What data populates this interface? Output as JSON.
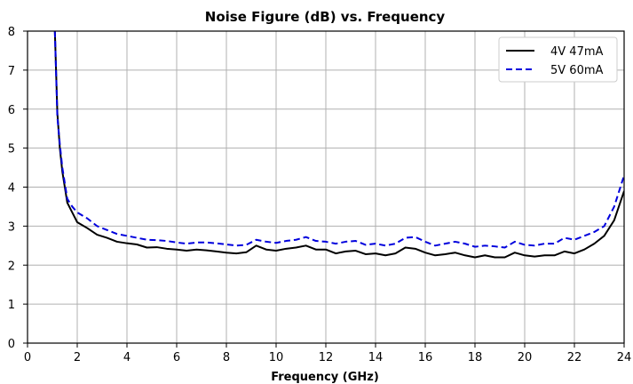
{
  "chart_data": {
    "type": "line",
    "title": "Noise Figure (dB) vs. Frequency",
    "xlabel": "Frequency (GHz)",
    "ylabel": "",
    "xlim": [
      0,
      24
    ],
    "ylim": [
      0,
      8
    ],
    "x_ticks": [
      "0",
      "2",
      "4",
      "6",
      "8",
      "10",
      "12",
      "14",
      "16",
      "18",
      "20",
      "22",
      "24"
    ],
    "y_ticks": [
      "0",
      "1",
      "2",
      "3",
      "4",
      "5",
      "6",
      "7",
      "8"
    ],
    "grid": true,
    "legend_position": "top-right",
    "series": [
      {
        "name": "4V 47mA",
        "color": "#000000",
        "dash": "solid",
        "x": [
          1.1,
          1.2,
          1.3,
          1.4,
          1.5,
          1.6,
          1.8,
          2.0,
          2.4,
          2.8,
          3.2,
          3.6,
          4.0,
          4.4,
          4.8,
          5.2,
          5.6,
          6.0,
          6.4,
          6.8,
          7.2,
          7.6,
          8.0,
          8.4,
          8.8,
          9.2,
          9.6,
          10.0,
          10.4,
          10.8,
          11.2,
          11.6,
          12.0,
          12.4,
          12.8,
          13.2,
          13.6,
          14.0,
          14.4,
          14.8,
          15.2,
          15.6,
          16.0,
          16.4,
          16.8,
          17.2,
          17.6,
          18.0,
          18.4,
          18.8,
          19.2,
          19.6,
          20.0,
          20.4,
          20.8,
          21.2,
          21.6,
          22.0,
          22.4,
          22.8,
          23.2,
          23.6,
          24.0
        ],
        "y": [
          8.0,
          5.9,
          5.0,
          4.4,
          4.0,
          3.6,
          3.35,
          3.1,
          2.95,
          2.78,
          2.7,
          2.6,
          2.56,
          2.53,
          2.45,
          2.46,
          2.42,
          2.4,
          2.37,
          2.4,
          2.38,
          2.35,
          2.32,
          2.3,
          2.33,
          2.5,
          2.4,
          2.37,
          2.42,
          2.45,
          2.5,
          2.4,
          2.4,
          2.3,
          2.35,
          2.37,
          2.28,
          2.3,
          2.25,
          2.3,
          2.45,
          2.42,
          2.32,
          2.25,
          2.28,
          2.32,
          2.25,
          2.2,
          2.25,
          2.2,
          2.2,
          2.32,
          2.25,
          2.22,
          2.25,
          2.25,
          2.35,
          2.3,
          2.4,
          2.55,
          2.75,
          3.15,
          3.9
        ]
      },
      {
        "name": "5V 60mA",
        "color": "#0000dd",
        "dash": "dashed",
        "x": [
          1.1,
          1.2,
          1.3,
          1.4,
          1.5,
          1.6,
          1.8,
          2.0,
          2.4,
          2.8,
          3.2,
          3.6,
          4.0,
          4.4,
          4.8,
          5.2,
          5.6,
          6.0,
          6.4,
          6.8,
          7.2,
          7.6,
          8.0,
          8.4,
          8.8,
          9.2,
          9.6,
          10.0,
          10.4,
          10.8,
          11.2,
          11.6,
          12.0,
          12.4,
          12.8,
          13.2,
          13.6,
          14.0,
          14.4,
          14.8,
          15.2,
          15.6,
          16.0,
          16.4,
          16.8,
          17.2,
          17.6,
          18.0,
          18.4,
          18.8,
          19.2,
          19.6,
          20.0,
          20.4,
          20.8,
          21.2,
          21.6,
          22.0,
          22.4,
          22.8,
          23.2,
          23.6,
          24.0
        ],
        "y": [
          8.0,
          5.8,
          5.1,
          4.5,
          4.1,
          3.7,
          3.5,
          3.35,
          3.2,
          3.0,
          2.9,
          2.8,
          2.75,
          2.7,
          2.65,
          2.64,
          2.62,
          2.58,
          2.55,
          2.58,
          2.58,
          2.56,
          2.53,
          2.5,
          2.52,
          2.65,
          2.6,
          2.57,
          2.62,
          2.65,
          2.72,
          2.62,
          2.6,
          2.55,
          2.6,
          2.62,
          2.52,
          2.55,
          2.5,
          2.55,
          2.7,
          2.72,
          2.6,
          2.5,
          2.55,
          2.6,
          2.55,
          2.47,
          2.5,
          2.48,
          2.45,
          2.6,
          2.52,
          2.5,
          2.55,
          2.55,
          2.7,
          2.65,
          2.75,
          2.85,
          3.0,
          3.5,
          4.3
        ]
      }
    ]
  }
}
